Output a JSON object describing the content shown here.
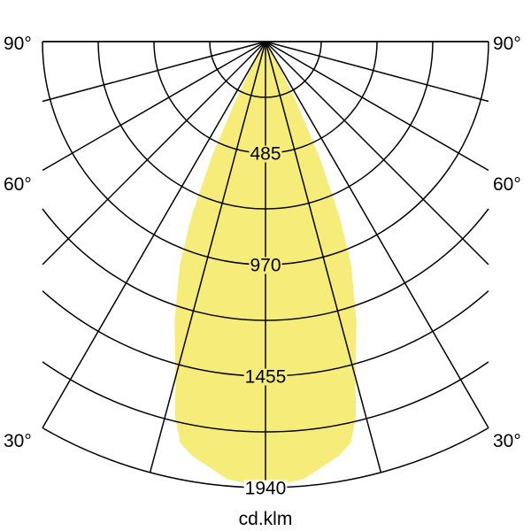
{
  "chart_data": {
    "type": "polar",
    "unit_label": "cd.klm",
    "radial_max": 1940,
    "ring_count": 8,
    "ring_labels": [
      "485",
      "970",
      "1455",
      "1940"
    ],
    "ring_label_values": [
      485,
      970,
      1455,
      1940
    ],
    "angle_labels": {
      "left": [
        "90°",
        "60°",
        "30°"
      ],
      "right": [
        "90°",
        "60°",
        "30°"
      ]
    },
    "angle_label_values": [
      90,
      60,
      30
    ],
    "angle_grid_step_deg": 15,
    "angle_range_deg": [
      -90,
      90
    ],
    "series": [
      {
        "symmetric": true,
        "color": "#f5ec7a",
        "angles_deg": [
          0,
          5,
          10,
          12,
          13.6,
          15,
          18,
          21,
          23,
          25,
          27,
          29,
          30
        ],
        "values": [
          1940,
          1910,
          1830,
          1785,
          1675,
          1510,
          1280,
          1040,
          820,
          560,
          290,
          100,
          0
        ]
      }
    ],
    "grid": true
  }
}
